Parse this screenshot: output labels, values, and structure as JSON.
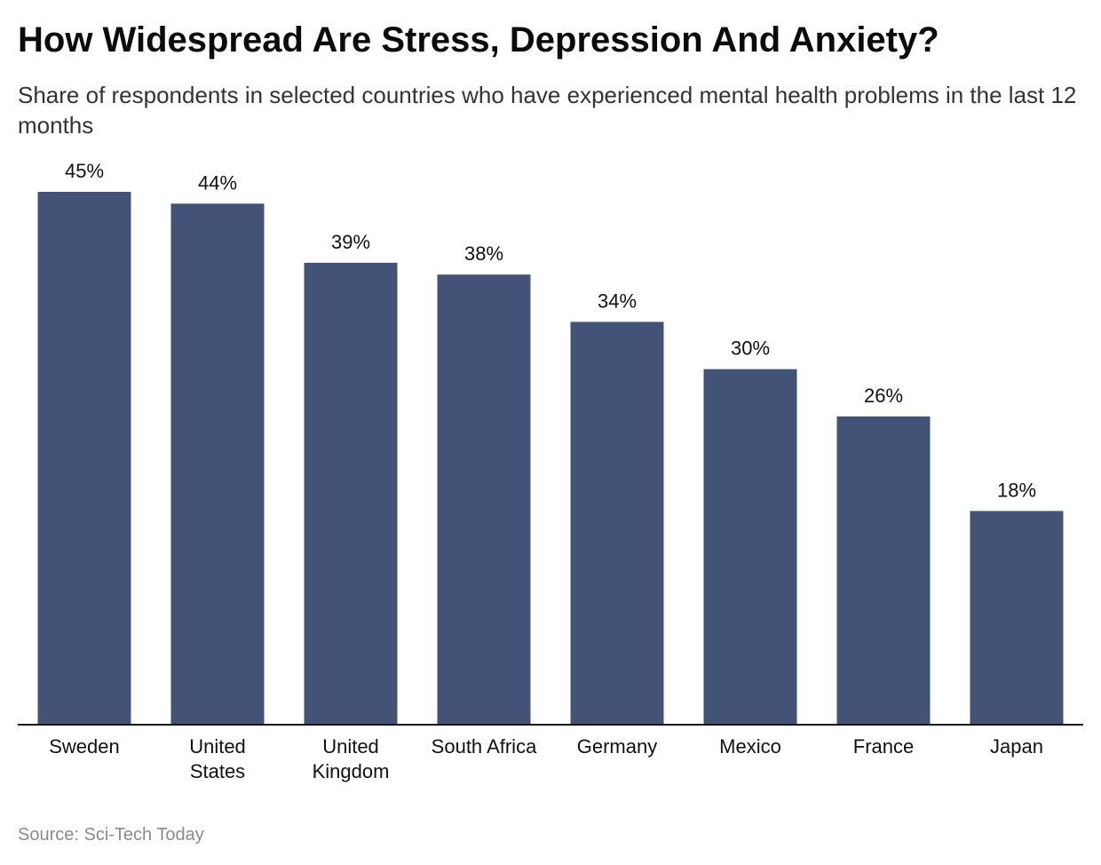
{
  "title": "How Widespread Are Stress, Depression And Anxiety?",
  "subtitle": "Share of respondents in selected countries who have experienced mental health problems in the last 12 months",
  "source": "Source: Sci-Tech Today",
  "colors": {
    "bar": "#435277",
    "axis": "#111111",
    "text": "#111111"
  },
  "chart_data": {
    "type": "bar",
    "title": "How Widespread Are Stress, Depression And Anxiety?",
    "subtitle": "Share of respondents in selected countries who have experienced mental health problems in the last 12 months",
    "xlabel": "",
    "ylabel": "",
    "categories": [
      [
        "Sweden"
      ],
      [
        "United",
        "States"
      ],
      [
        "United",
        "Kingdom"
      ],
      [
        "South Africa"
      ],
      [
        "Germany"
      ],
      [
        "Mexico"
      ],
      [
        "France"
      ],
      [
        "Japan"
      ]
    ],
    "values": [
      45,
      44,
      39,
      38,
      34,
      30,
      26,
      18
    ],
    "value_labels": [
      "45%",
      "44%",
      "39%",
      "38%",
      "34%",
      "30%",
      "26%",
      "18%"
    ],
    "unit": "%",
    "ylim": [
      0,
      45
    ],
    "grid": false,
    "legend": "none"
  }
}
